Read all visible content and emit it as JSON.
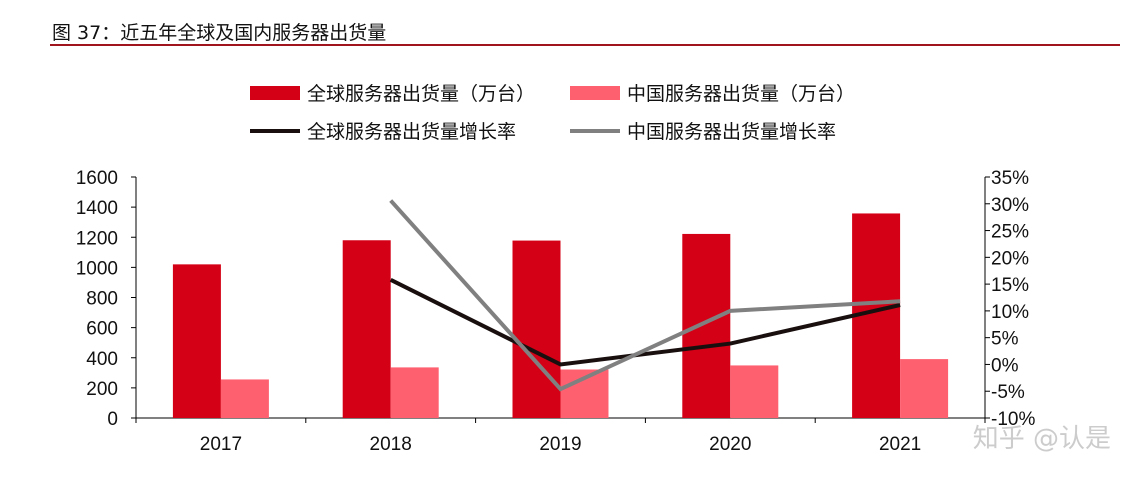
{
  "title": "图 37：近五年全球及国内服务器出货量",
  "watermark": "知乎 @认是",
  "chart_data": {
    "type": "bar+line",
    "categories": [
      "2017",
      "2018",
      "2019",
      "2020",
      "2021"
    ],
    "left_axis": {
      "ylim": [
        0,
        1600
      ],
      "ticks": [
        "0",
        "200",
        "400",
        "600",
        "800",
        "1000",
        "1200",
        "1400",
        "1600"
      ]
    },
    "right_axis": {
      "ylim": [
        -10,
        35
      ],
      "ticks": [
        "-10%",
        "-5%",
        "0%",
        "5%",
        "10%",
        "15%",
        "20%",
        "25%",
        "30%",
        "35%"
      ]
    },
    "series": [
      {
        "name": "全球服务器出货量（万台）",
        "type": "bar",
        "axis": "left",
        "color": "#d40016",
        "values": [
          1020,
          1180,
          1178,
          1222,
          1358
        ]
      },
      {
        "name": "中国服务器出货量（万台）",
        "type": "bar",
        "axis": "left",
        "color": "#ff6070",
        "values": [
          256,
          336,
          322,
          349,
          391
        ]
      },
      {
        "name": "全球服务器出货量增长率",
        "type": "line",
        "axis": "right",
        "color": "#1a0f0f",
        "values": [
          null,
          15.8,
          0.0,
          3.9,
          11.1
        ]
      },
      {
        "name": "中国服务器出货量增长率",
        "type": "line",
        "axis": "right",
        "color": "#808080",
        "values": [
          null,
          30.6,
          -4.6,
          10.0,
          11.8
        ]
      }
    ],
    "grid": false,
    "legend": "top"
  }
}
